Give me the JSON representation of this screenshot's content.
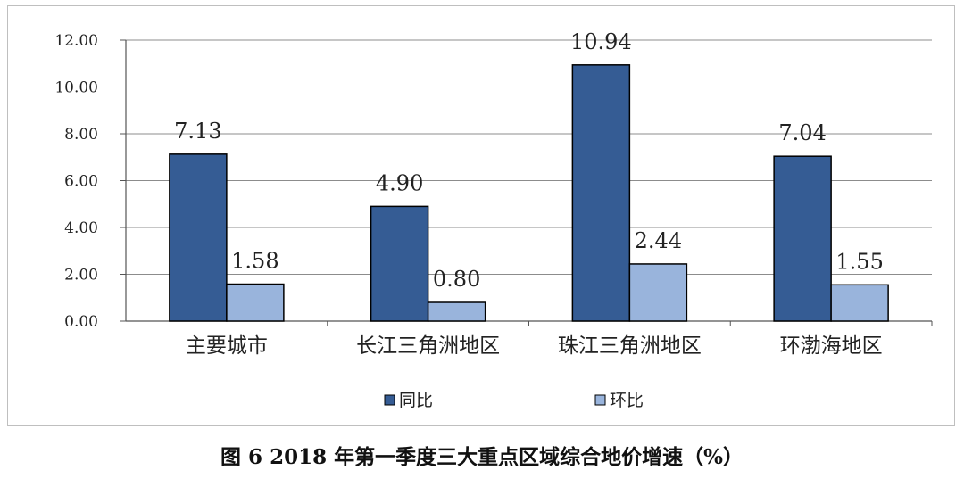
{
  "chart_data": {
    "type": "bar",
    "categories": [
      "主要城市",
      "长江三角洲地区",
      "珠江三角洲地区",
      "环渤海地区"
    ],
    "series": [
      {
        "name": "同比",
        "values": [
          7.13,
          4.9,
          10.94,
          7.04
        ],
        "labels": [
          "7.13",
          "4.90",
          "10.94",
          "7.04"
        ],
        "color": "#355c94"
      },
      {
        "name": "环比",
        "values": [
          1.58,
          0.8,
          2.44,
          1.55
        ],
        "labels": [
          "1.58",
          "0.80",
          "2.44",
          "1.55"
        ],
        "color": "#99b4dc"
      }
    ],
    "ylim": [
      0,
      12
    ],
    "yticks": [
      "0.00",
      "2.00",
      "4.00",
      "6.00",
      "8.00",
      "10.00",
      "12.00"
    ],
    "grid": true,
    "legend_position": "bottom",
    "xlabel": "",
    "ylabel": ""
  },
  "caption": "图 6  2018 年第一季度三大重点区域综合地价增速（%）"
}
